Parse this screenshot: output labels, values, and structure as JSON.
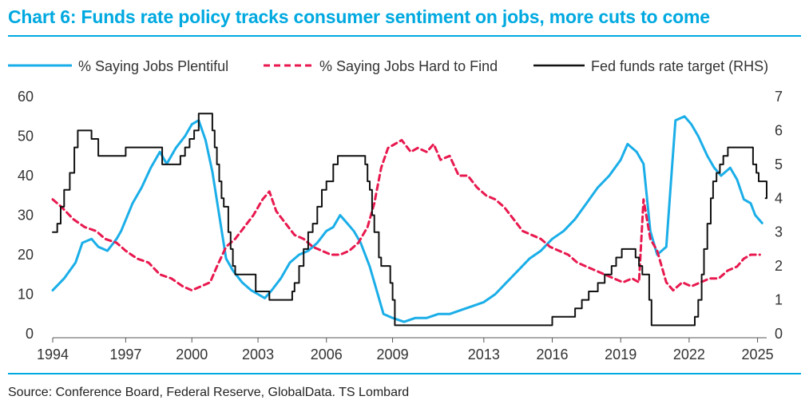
{
  "title": "Chart 6: Funds rate policy tracks consumer sentiment on jobs, more cuts to come",
  "source": "Source: Conference Board, Federal Reserve, GlobalData. TS Lombard",
  "colors": {
    "accent": "#00a9e0",
    "plentiful": "#1aaee8",
    "hard": "#e8194f",
    "fed": "#111111"
  },
  "chart_data": {
    "type": "line",
    "xlim": [
      1994,
      2025.3
    ],
    "ylim_left": [
      0,
      60
    ],
    "ylim_right": [
      0,
      7
    ],
    "x_ticks": [
      {
        "label": "1994",
        "x": 1994
      },
      {
        "label": "1997",
        "x": 1997.2
      },
      {
        "label": "2000",
        "x": 2000.1
      },
      {
        "label": "2003",
        "x": 2003.0
      },
      {
        "label": "2006",
        "x": 2006.0
      },
      {
        "label": "2009",
        "x": 2008.9
      },
      {
        "label": "2013",
        "x": 2012.9
      },
      {
        "label": "2016",
        "x": 2015.9
      },
      {
        "label": "2019",
        "x": 2018.9
      },
      {
        "label": "2022",
        "x": 2021.9
      },
      {
        "label": "2025",
        "x": 2024.9
      }
    ],
    "y_left_ticks": [
      "0",
      "10",
      "20",
      "30",
      "40",
      "50",
      "60"
    ],
    "y_right_ticks": [
      "0",
      "1",
      "2",
      "3",
      "4",
      "5",
      "6",
      "7"
    ],
    "legend": [
      "% Saying Jobs Plentiful",
      "% Saying Jobs Hard to Find",
      "Fed funds rate target (RHS)"
    ],
    "series": [
      {
        "name": "% Saying Jobs Plentiful",
        "axis": "left",
        "style": "solid",
        "points": [
          [
            1994.0,
            11
          ],
          [
            1994.5,
            14
          ],
          [
            1995.0,
            18
          ],
          [
            1995.3,
            23
          ],
          [
            1995.7,
            24
          ],
          [
            1996.0,
            22
          ],
          [
            1996.4,
            21
          ],
          [
            1996.8,
            24
          ],
          [
            1997.0,
            26
          ],
          [
            1997.5,
            33
          ],
          [
            1997.9,
            37
          ],
          [
            1998.3,
            42
          ],
          [
            1998.7,
            46
          ],
          [
            1999.0,
            43
          ],
          [
            1999.4,
            47
          ],
          [
            1999.8,
            50
          ],
          [
            2000.1,
            53
          ],
          [
            2000.4,
            54
          ],
          [
            2000.7,
            49
          ],
          [
            2001.0,
            41
          ],
          [
            2001.3,
            30
          ],
          [
            2001.6,
            19
          ],
          [
            2001.9,
            16
          ],
          [
            2002.3,
            13
          ],
          [
            2002.7,
            11
          ],
          [
            2003.0,
            10
          ],
          [
            2003.3,
            9
          ],
          [
            2003.6,
            11
          ],
          [
            2004.0,
            14
          ],
          [
            2004.4,
            18
          ],
          [
            2004.8,
            20
          ],
          [
            2005.2,
            21
          ],
          [
            2005.6,
            23
          ],
          [
            2006.0,
            26
          ],
          [
            2006.3,
            27
          ],
          [
            2006.6,
            30
          ],
          [
            2006.9,
            28
          ],
          [
            2007.2,
            26
          ],
          [
            2007.5,
            23
          ],
          [
            2007.9,
            17
          ],
          [
            2008.2,
            11
          ],
          [
            2008.5,
            5
          ],
          [
            2008.9,
            4
          ],
          [
            2009.4,
            3
          ],
          [
            2009.9,
            4
          ],
          [
            2010.4,
            4
          ],
          [
            2010.9,
            5
          ],
          [
            2011.4,
            5
          ],
          [
            2011.9,
            6
          ],
          [
            2012.4,
            7
          ],
          [
            2012.9,
            8
          ],
          [
            2013.4,
            10
          ],
          [
            2013.9,
            13
          ],
          [
            2014.4,
            16
          ],
          [
            2014.9,
            19
          ],
          [
            2015.4,
            21
          ],
          [
            2015.9,
            24
          ],
          [
            2016.4,
            26
          ],
          [
            2016.9,
            29
          ],
          [
            2017.4,
            33
          ],
          [
            2017.9,
            37
          ],
          [
            2018.4,
            40
          ],
          [
            2018.9,
            44
          ],
          [
            2019.2,
            48
          ],
          [
            2019.6,
            46
          ],
          [
            2019.9,
            43
          ],
          [
            2020.2,
            26
          ],
          [
            2020.5,
            20
          ],
          [
            2020.9,
            22
          ],
          [
            2021.1,
            38
          ],
          [
            2021.3,
            54
          ],
          [
            2021.7,
            55
          ],
          [
            2022.0,
            53
          ],
          [
            2022.3,
            50
          ],
          [
            2022.7,
            45
          ],
          [
            2023.0,
            42
          ],
          [
            2023.3,
            40
          ],
          [
            2023.7,
            42
          ],
          [
            2024.0,
            39
          ],
          [
            2024.3,
            34
          ],
          [
            2024.6,
            33
          ],
          [
            2024.8,
            30
          ],
          [
            2025.1,
            28
          ]
        ]
      },
      {
        "name": "% Saying Jobs Hard to Find",
        "axis": "left",
        "style": "dashed",
        "points": [
          [
            1994.0,
            34
          ],
          [
            1994.4,
            32
          ],
          [
            1994.9,
            29
          ],
          [
            1995.4,
            27
          ],
          [
            1995.9,
            26
          ],
          [
            1996.3,
            24
          ],
          [
            1996.8,
            23
          ],
          [
            1997.2,
            21
          ],
          [
            1997.7,
            19
          ],
          [
            1998.2,
            18
          ],
          [
            1998.7,
            15
          ],
          [
            1999.2,
            14
          ],
          [
            1999.7,
            12
          ],
          [
            2000.1,
            11
          ],
          [
            2000.5,
            12
          ],
          [
            2000.9,
            13
          ],
          [
            2001.2,
            17
          ],
          [
            2001.6,
            22
          ],
          [
            2002.0,
            24
          ],
          [
            2002.4,
            27
          ],
          [
            2002.8,
            30
          ],
          [
            2003.2,
            34
          ],
          [
            2003.5,
            36
          ],
          [
            2003.8,
            31
          ],
          [
            2004.2,
            28
          ],
          [
            2004.6,
            25
          ],
          [
            2005.0,
            24
          ],
          [
            2005.4,
            22
          ],
          [
            2005.8,
            21
          ],
          [
            2006.2,
            20
          ],
          [
            2006.6,
            20
          ],
          [
            2007.0,
            21
          ],
          [
            2007.4,
            23
          ],
          [
            2007.8,
            27
          ],
          [
            2008.1,
            33
          ],
          [
            2008.4,
            42
          ],
          [
            2008.7,
            47
          ],
          [
            2009.0,
            48
          ],
          [
            2009.3,
            49
          ],
          [
            2009.7,
            46
          ],
          [
            2010.0,
            47
          ],
          [
            2010.4,
            46
          ],
          [
            2010.7,
            48
          ],
          [
            2011.0,
            44
          ],
          [
            2011.4,
            45
          ],
          [
            2011.8,
            40
          ],
          [
            2012.2,
            40
          ],
          [
            2012.6,
            37
          ],
          [
            2013.0,
            35
          ],
          [
            2013.4,
            34
          ],
          [
            2013.8,
            32
          ],
          [
            2014.2,
            29
          ],
          [
            2014.6,
            26
          ],
          [
            2015.0,
            25
          ],
          [
            2015.4,
            24
          ],
          [
            2015.8,
            22
          ],
          [
            2016.2,
            21
          ],
          [
            2016.6,
            20
          ],
          [
            2017.0,
            18
          ],
          [
            2017.4,
            17
          ],
          [
            2017.8,
            16
          ],
          [
            2018.2,
            15
          ],
          [
            2018.6,
            14
          ],
          [
            2019.0,
            13
          ],
          [
            2019.4,
            14
          ],
          [
            2019.7,
            13
          ],
          [
            2019.9,
            34
          ],
          [
            2020.2,
            24
          ],
          [
            2020.5,
            21
          ],
          [
            2020.9,
            13
          ],
          [
            2021.2,
            11
          ],
          [
            2021.6,
            13
          ],
          [
            2022.0,
            12
          ],
          [
            2022.4,
            13
          ],
          [
            2022.8,
            14
          ],
          [
            2023.2,
            14
          ],
          [
            2023.6,
            16
          ],
          [
            2024.0,
            17
          ],
          [
            2024.3,
            19
          ],
          [
            2024.6,
            20
          ],
          [
            2025.0,
            20
          ]
        ]
      },
      {
        "name": "Fed funds rate target (RHS)",
        "axis": "right",
        "style": "solid",
        "points": [
          [
            1994.0,
            3.0
          ],
          [
            1994.2,
            3.25
          ],
          [
            1994.35,
            3.75
          ],
          [
            1994.5,
            4.25
          ],
          [
            1994.75,
            4.75
          ],
          [
            1994.95,
            5.5
          ],
          [
            1995.1,
            6.0
          ],
          [
            1995.7,
            5.75
          ],
          [
            1996.0,
            5.25
          ],
          [
            1997.2,
            5.5
          ],
          [
            1998.8,
            5.0
          ],
          [
            1999.6,
            5.25
          ],
          [
            1999.8,
            5.5
          ],
          [
            2000.0,
            5.75
          ],
          [
            2000.2,
            6.0
          ],
          [
            2000.4,
            6.5
          ],
          [
            2001.0,
            6.0
          ],
          [
            2001.1,
            5.5
          ],
          [
            2001.2,
            5.0
          ],
          [
            2001.3,
            4.5
          ],
          [
            2001.4,
            4.0
          ],
          [
            2001.5,
            3.75
          ],
          [
            2001.7,
            3.0
          ],
          [
            2001.8,
            2.5
          ],
          [
            2001.9,
            2.0
          ],
          [
            2002.0,
            1.75
          ],
          [
            2002.9,
            1.25
          ],
          [
            2003.5,
            1.0
          ],
          [
            2004.5,
            1.25
          ],
          [
            2004.6,
            1.5
          ],
          [
            2004.8,
            2.0
          ],
          [
            2005.0,
            2.5
          ],
          [
            2005.2,
            3.0
          ],
          [
            2005.4,
            3.25
          ],
          [
            2005.6,
            3.75
          ],
          [
            2005.8,
            4.25
          ],
          [
            2006.0,
            4.5
          ],
          [
            2006.3,
            5.0
          ],
          [
            2006.5,
            5.25
          ],
          [
            2007.7,
            5.0
          ],
          [
            2007.8,
            4.5
          ],
          [
            2007.9,
            4.25
          ],
          [
            2008.0,
            3.5
          ],
          [
            2008.1,
            3.0
          ],
          [
            2008.3,
            2.25
          ],
          [
            2008.4,
            2.0
          ],
          [
            2008.8,
            1.5
          ],
          [
            2008.9,
            1.0
          ],
          [
            2009.0,
            0.25
          ],
          [
            2015.9,
            0.5
          ],
          [
            2016.9,
            0.75
          ],
          [
            2017.2,
            1.0
          ],
          [
            2017.5,
            1.25
          ],
          [
            2017.9,
            1.5
          ],
          [
            2018.2,
            1.75
          ],
          [
            2018.5,
            2.0
          ],
          [
            2018.7,
            2.25
          ],
          [
            2018.95,
            2.5
          ],
          [
            2019.55,
            2.25
          ],
          [
            2019.7,
            2.0
          ],
          [
            2019.85,
            1.75
          ],
          [
            2020.15,
            1.0
          ],
          [
            2020.25,
            0.25
          ],
          [
            2022.15,
            0.5
          ],
          [
            2022.3,
            1.0
          ],
          [
            2022.45,
            1.75
          ],
          [
            2022.55,
            2.5
          ],
          [
            2022.7,
            3.25
          ],
          [
            2022.85,
            4.0
          ],
          [
            2022.95,
            4.5
          ],
          [
            2023.1,
            4.75
          ],
          [
            2023.25,
            5.0
          ],
          [
            2023.4,
            5.25
          ],
          [
            2023.6,
            5.5
          ],
          [
            2024.7,
            5.0
          ],
          [
            2024.85,
            4.75
          ],
          [
            2024.95,
            4.5
          ],
          [
            2025.3,
            4.0
          ]
        ]
      }
    ]
  }
}
